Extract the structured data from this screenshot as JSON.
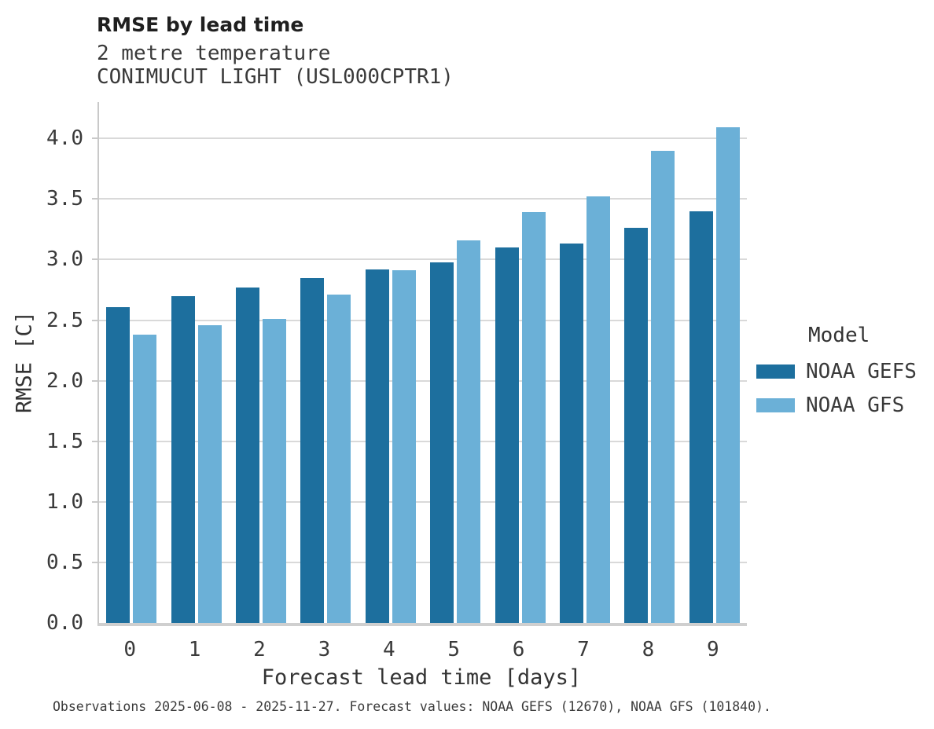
{
  "header": {
    "title": "RMSE by lead time",
    "subtitle_variable": "2 metre temperature",
    "subtitle_station": "CONIMUCUT LIGHT (USL000CPTR1)"
  },
  "chart_data": {
    "type": "bar",
    "title": "RMSE by lead time",
    "subtitle": [
      "2 metre temperature",
      "CONIMUCUT LIGHT (USL000CPTR1)"
    ],
    "categories": [
      "0",
      "1",
      "2",
      "3",
      "4",
      "5",
      "6",
      "7",
      "8",
      "9"
    ],
    "series": [
      {
        "name": "NOAA GEFS",
        "color": "#1d6f9e",
        "values": [
          2.61,
          2.7,
          2.77,
          2.85,
          2.92,
          2.98,
          3.1,
          3.13,
          3.26,
          3.4
        ]
      },
      {
        "name": "NOAA GFS",
        "color": "#6bb0d7",
        "values": [
          2.38,
          2.46,
          2.51,
          2.71,
          2.91,
          3.16,
          3.39,
          3.52,
          3.9,
          4.09
        ]
      }
    ],
    "xlabel": "Forecast lead time [days]",
    "ylabel": "RMSE [C]",
    "ylim": [
      0,
      4.3
    ],
    "yticks": [
      0.0,
      0.5,
      1.0,
      1.5,
      2.0,
      2.5,
      3.0,
      3.5,
      4.0
    ],
    "legend_title": "Model",
    "legend_position": "right",
    "grid": "horizontal",
    "grid_color": "#d9d9d9",
    "spine_color": "#c9c9c9"
  },
  "footer": {
    "note": "Observations 2025-06-08 - 2025-11-27. Forecast values: NOAA GEFS (12670), NOAA GFS (101840)."
  }
}
